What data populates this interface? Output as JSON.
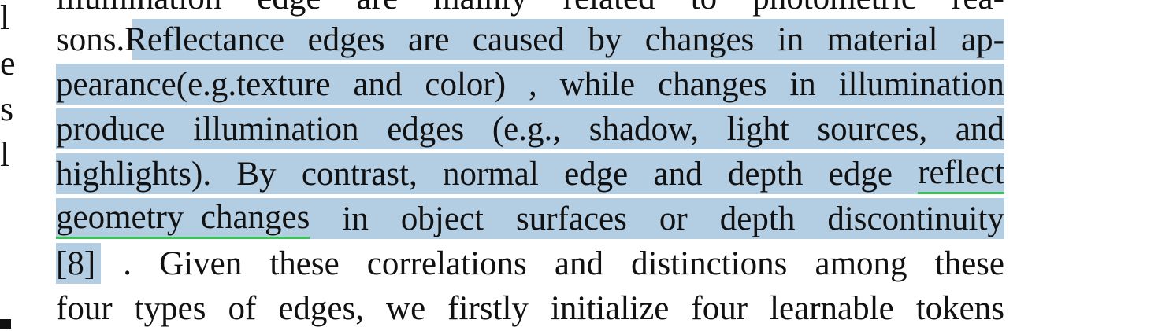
{
  "left_column": [
    "l",
    "e",
    "s",
    "l"
  ],
  "lines": [
    {
      "words": [
        "illumination",
        "edge",
        "are",
        "mainly",
        "related",
        "to",
        "photometric",
        "rea-"
      ]
    },
    {
      "pre": "sons.",
      "words": [
        "Reflectance",
        "edges",
        "are",
        "caused",
        "by",
        "changes",
        "in",
        "material",
        "ap-"
      ]
    },
    {
      "words": [
        "pearance(e.g.texture",
        "and",
        "color)",
        ",",
        "while",
        "changes",
        "in",
        "illumination"
      ]
    },
    {
      "words": [
        "produce",
        "illumination",
        "edges",
        "(e.g.,",
        "shadow,",
        "light",
        "sources,",
        "and"
      ]
    },
    {
      "words": [
        "highlights).",
        "By",
        "contrast,",
        "normal",
        "edge",
        "and",
        "depth",
        "edge",
        "reflect"
      ]
    },
    {
      "words": [
        "geometry",
        "changes",
        "in",
        "object",
        "surfaces",
        "or",
        "depth",
        "discontinuity"
      ]
    },
    {
      "words": [
        "[8]",
        ".",
        "Given",
        "these",
        "correlations",
        "and",
        "distinctions",
        "among",
        "these"
      ]
    },
    {
      "words": [
        "four",
        "types",
        "of",
        "edges,",
        "we",
        "firstly",
        "initialize",
        "four",
        "learnable",
        "tokens"
      ]
    }
  ],
  "highlight_color": "#b3cde3",
  "underline_color": "#3cc25b"
}
